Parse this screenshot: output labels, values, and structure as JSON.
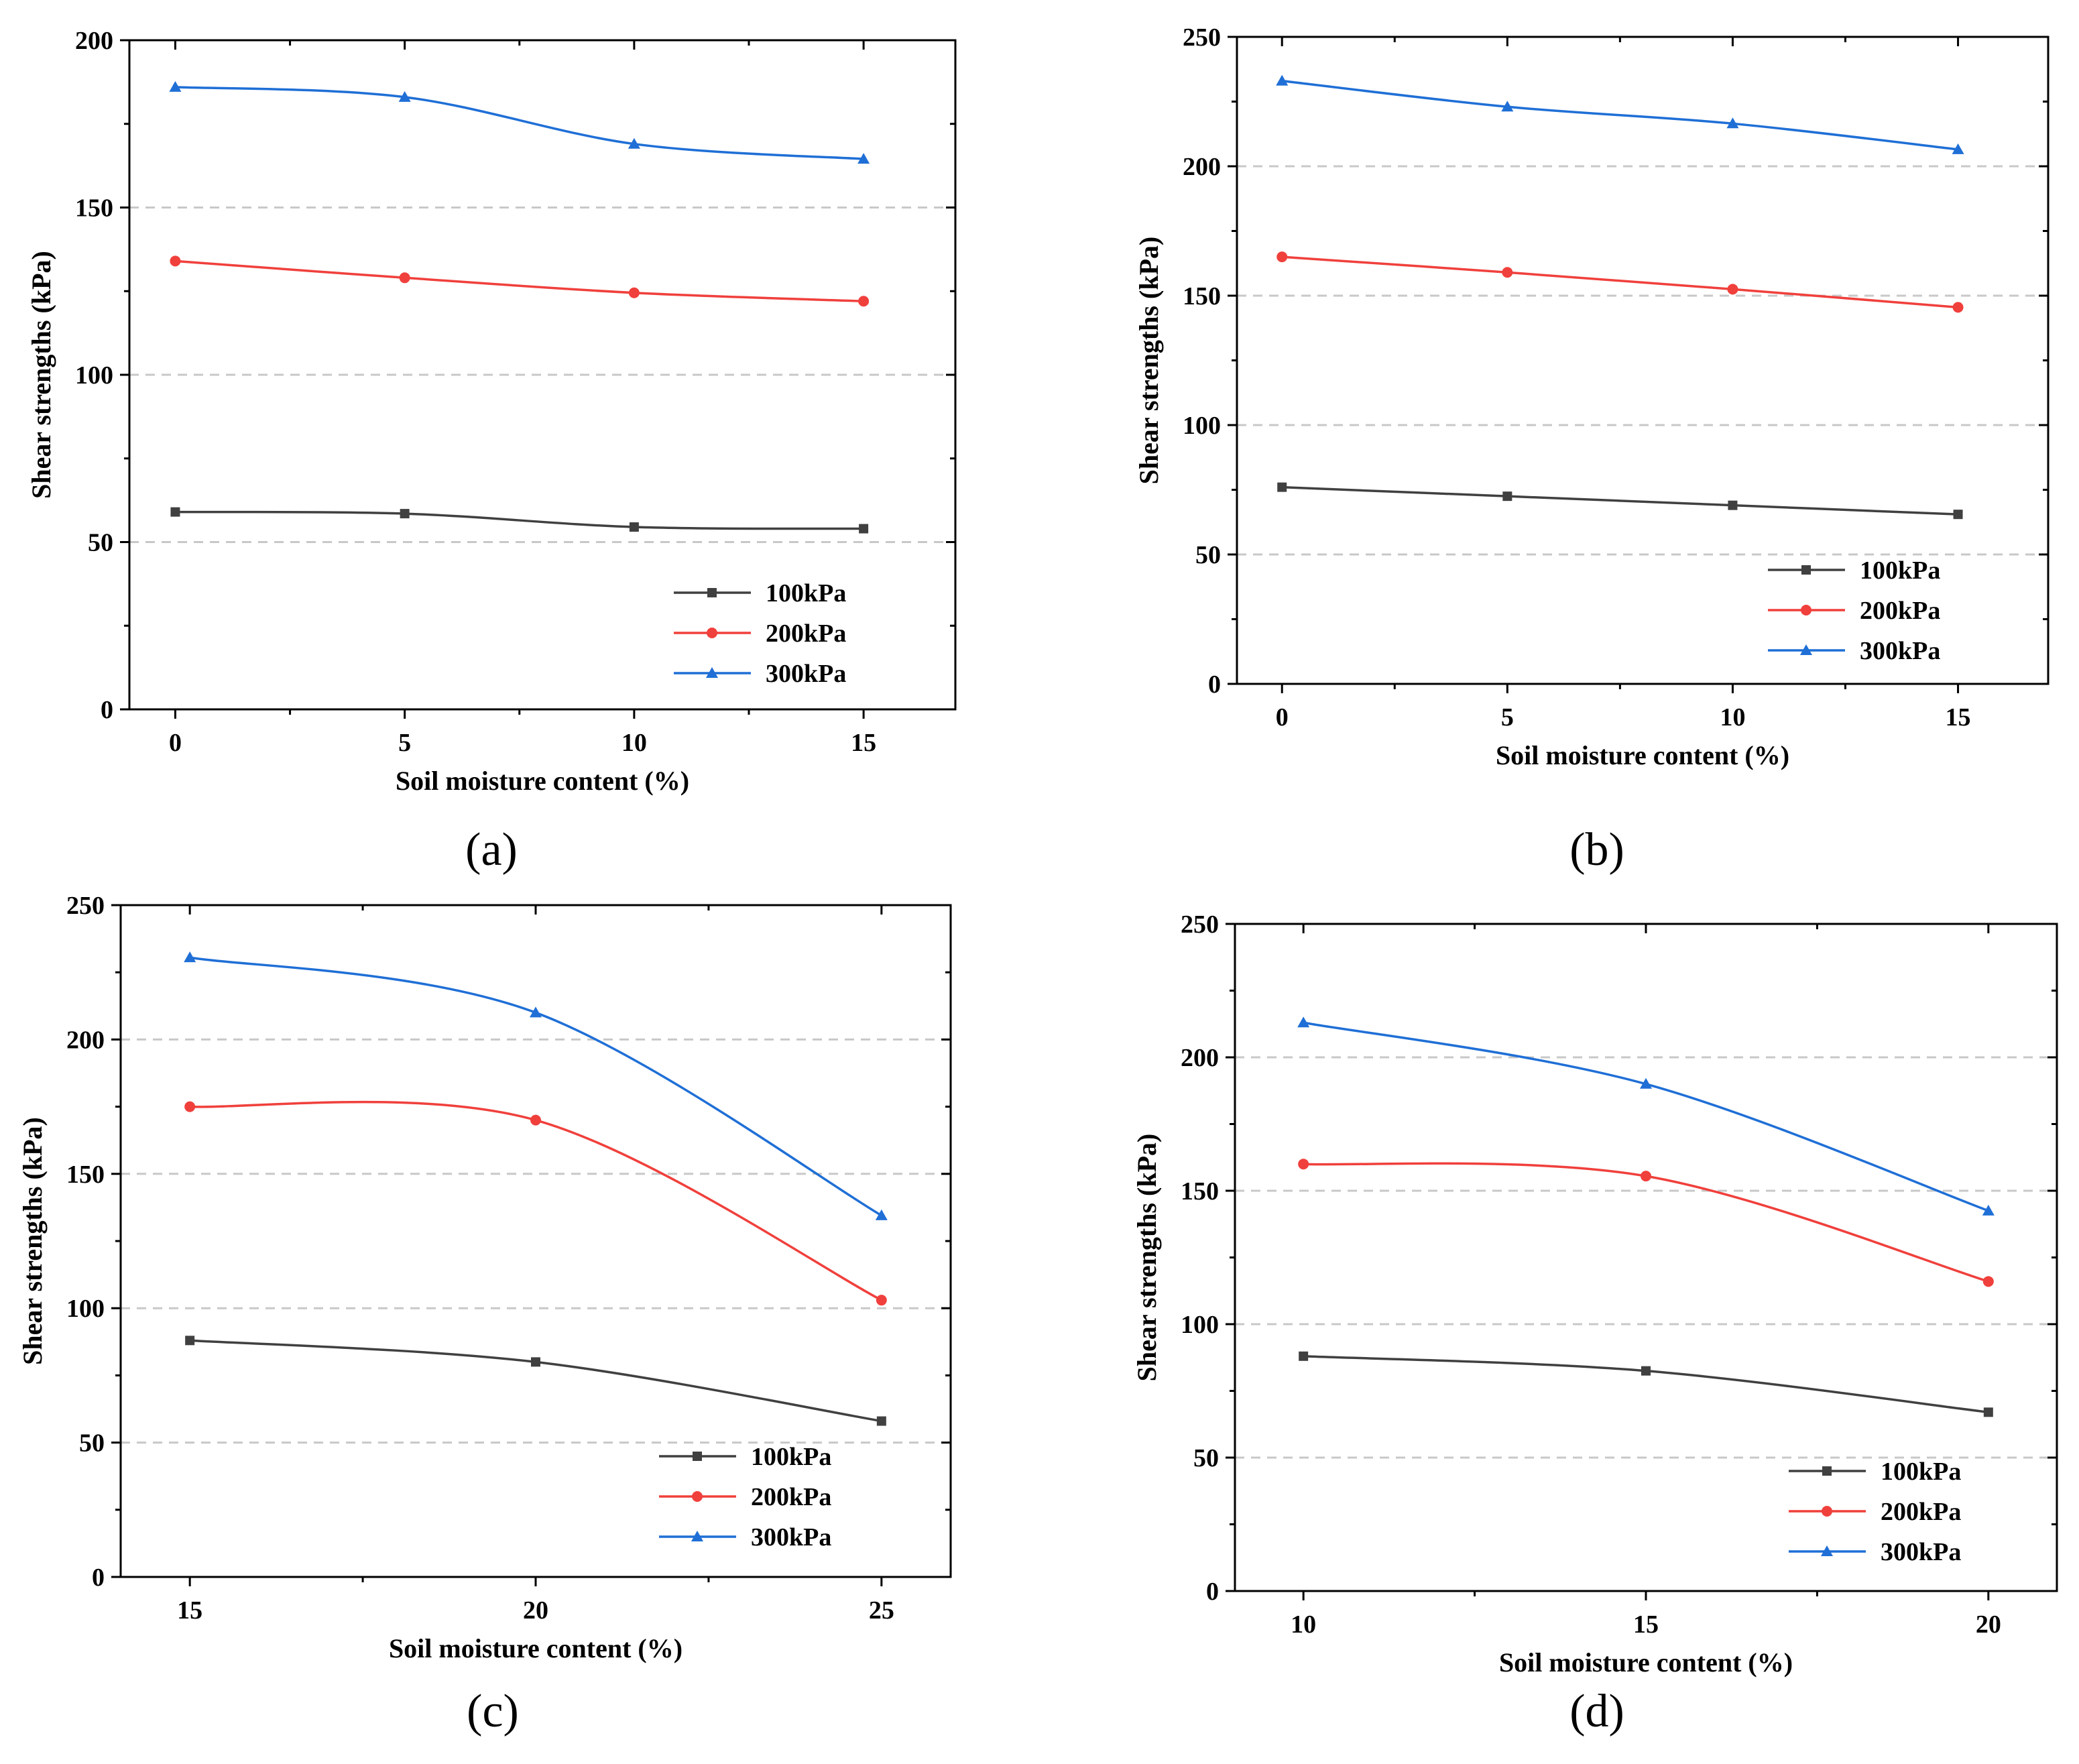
{
  "figure": {
    "legend_entries": [
      "100kPa",
      "200kPa",
      "300kPa"
    ]
  },
  "chart_data": [
    {
      "type": "line",
      "panel_label": "(a)",
      "xlabel": "Soil moisture content (%)",
      "ylabel": "Shear strengths (kPa)",
      "x": [
        0,
        5,
        10,
        15
      ],
      "xticks": [
        "0",
        "5",
        "10",
        "15"
      ],
      "xlim": [
        -1,
        17
      ],
      "ylim": [
        0,
        200
      ],
      "yticks": [
        "0",
        "50",
        "100",
        "150",
        "200"
      ],
      "grid": true,
      "legend_position": "bottom-right",
      "series": [
        {
          "name": "100kPa",
          "color": "#404040",
          "marker": "square",
          "values": [
            59,
            58.5,
            54.5,
            54
          ]
        },
        {
          "name": "200kPa",
          "color": "#f0403c",
          "marker": "circle",
          "values": [
            134,
            129,
            124.5,
            122
          ]
        },
        {
          "name": "300kPa",
          "color": "#1f6fd6",
          "marker": "triangle",
          "values": [
            186,
            183,
            169,
            164.5
          ]
        }
      ]
    },
    {
      "type": "line",
      "panel_label": "(b)",
      "xlabel": "Soil moisture content (%)",
      "ylabel": "Shear strengths (kPa)",
      "x": [
        0,
        5,
        10,
        15
      ],
      "xticks": [
        "0",
        "5",
        "10",
        "15"
      ],
      "xlim": [
        -1,
        17
      ],
      "ylim": [
        0,
        250
      ],
      "yticks": [
        "0",
        "50",
        "100",
        "150",
        "200",
        "250"
      ],
      "grid": true,
      "legend_position": "bottom-right",
      "series": [
        {
          "name": "100kPa",
          "color": "#404040",
          "marker": "square",
          "values": [
            76,
            72.5,
            69,
            65.5
          ]
        },
        {
          "name": "200kPa",
          "color": "#f0403c",
          "marker": "circle",
          "values": [
            165,
            159,
            152.5,
            145.5
          ]
        },
        {
          "name": "300kPa",
          "color": "#1f6fd6",
          "marker": "triangle",
          "values": [
            233,
            223,
            216.5,
            206.5
          ]
        }
      ]
    },
    {
      "type": "line",
      "panel_label": "(c)",
      "xlabel": "Soil moisture content (%)",
      "ylabel": "Shear strengths (kPa)",
      "x": [
        15,
        20,
        25
      ],
      "xticks": [
        "15",
        "20",
        "25"
      ],
      "xlim": [
        14,
        26
      ],
      "ylim": [
        0,
        250
      ],
      "yticks": [
        "0",
        "50",
        "100",
        "150",
        "200",
        "250"
      ],
      "grid": true,
      "legend_position": "bottom-right",
      "series": [
        {
          "name": "100kPa",
          "color": "#404040",
          "marker": "square",
          "values": [
            88,
            80,
            58
          ]
        },
        {
          "name": "200kPa",
          "color": "#f0403c",
          "marker": "circle",
          "values": [
            175,
            170,
            103
          ]
        },
        {
          "name": "300kPa",
          "color": "#1f6fd6",
          "marker": "triangle",
          "values": [
            230.5,
            210,
            134.5
          ]
        }
      ]
    },
    {
      "type": "line",
      "panel_label": "(d)",
      "xlabel": "Soil moisture content (%)",
      "ylabel": "Shear strengths (kPa)",
      "x": [
        10,
        15,
        20
      ],
      "xticks": [
        "10",
        "15",
        "20"
      ],
      "xlim": [
        9,
        21
      ],
      "ylim": [
        0,
        250
      ],
      "yticks": [
        "0",
        "50",
        "100",
        "150",
        "200",
        "250"
      ],
      "grid": true,
      "legend_position": "bottom-right",
      "series": [
        {
          "name": "100kPa",
          "color": "#404040",
          "marker": "square",
          "values": [
            88,
            82.5,
            67
          ]
        },
        {
          "name": "200kPa",
          "color": "#f0403c",
          "marker": "circle",
          "values": [
            160,
            155.5,
            116
          ]
        },
        {
          "name": "300kPa",
          "color": "#1f6fd6",
          "marker": "triangle",
          "values": [
            213,
            190,
            142.5
          ]
        }
      ]
    }
  ]
}
